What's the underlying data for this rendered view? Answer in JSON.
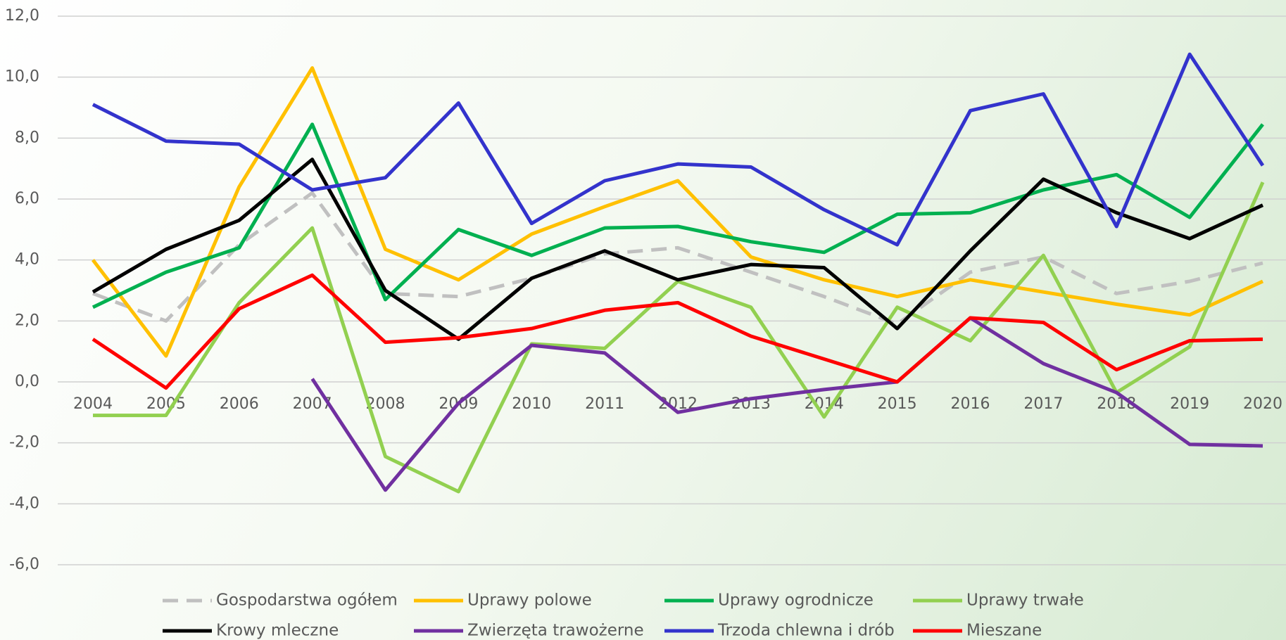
{
  "chart_data": {
    "type": "line",
    "categories": [
      "2004",
      "2005",
      "2006",
      "2007",
      "2008",
      "2009",
      "2010",
      "2011",
      "2012",
      "2013",
      "2014",
      "2015",
      "2016",
      "2017",
      "2018",
      "2019",
      "2020"
    ],
    "ylim": [
      -6,
      12
    ],
    "yticks": [
      {
        "value": -6,
        "label": "-6,0"
      },
      {
        "value": -4,
        "label": "-4,0"
      },
      {
        "value": -2,
        "label": "-2,0"
      },
      {
        "value": 0,
        "label": "0,0"
      },
      {
        "value": 2,
        "label": "2,0"
      },
      {
        "value": 4,
        "label": "4,0"
      },
      {
        "value": 6,
        "label": "6,0"
      },
      {
        "value": 8,
        "label": "8,0"
      },
      {
        "value": 10,
        "label": "10,0"
      },
      {
        "value": 12,
        "label": "12,0"
      }
    ],
    "grid": true,
    "legend": "bottom",
    "series": [
      {
        "name": "Gospodarstwa ogółem",
        "color": "#c0c0c0",
        "dash": true,
        "values": [
          2.9,
          2.0,
          4.5,
          6.2,
          2.9,
          2.8,
          3.4,
          4.2,
          4.4,
          3.6,
          2.8,
          1.9,
          3.6,
          4.1,
          2.9,
          3.3,
          3.9
        ]
      },
      {
        "name": "Uprawy polowe",
        "color": "#ffc000",
        "values": [
          4.0,
          0.85,
          6.4,
          10.3,
          4.35,
          3.35,
          4.85,
          5.75,
          6.6,
          4.1,
          3.35,
          2.8,
          3.35,
          2.95,
          2.55,
          2.2,
          3.3
        ]
      },
      {
        "name": "Uprawy ogrodnicze",
        "color": "#00b050",
        "values": [
          2.45,
          3.6,
          4.4,
          8.45,
          2.7,
          5.0,
          4.15,
          5.05,
          5.1,
          4.6,
          4.25,
          5.5,
          5.55,
          6.3,
          6.8,
          5.4,
          8.45
        ]
      },
      {
        "name": "Uprawy trwałe",
        "color": "#92d050",
        "values": [
          -1.1,
          -1.1,
          2.6,
          5.05,
          -2.45,
          -3.6,
          1.25,
          1.1,
          3.3,
          2.45,
          -1.15,
          2.45,
          1.35,
          4.15,
          -0.35,
          1.15,
          6.55
        ]
      },
      {
        "name": "Krowy mleczne",
        "color": "#000000",
        "values": [
          2.95,
          4.35,
          5.3,
          7.3,
          3.0,
          1.4,
          3.4,
          4.3,
          3.35,
          3.85,
          3.75,
          1.75,
          4.3,
          6.65,
          5.55,
          4.7,
          5.8
        ]
      },
      {
        "name": "Zwierzęta trawożerne",
        "color": "#7030a0",
        "values": [
          null,
          null,
          null,
          0.1,
          -3.55,
          -0.7,
          1.2,
          0.95,
          -1.0,
          -0.55,
          -0.25,
          0.0,
          2.1,
          0.6,
          -0.35,
          -2.05,
          -2.1
        ]
      },
      {
        "name": "Trzoda chlewna i drób",
        "color": "#3333cc",
        "values": [
          9.1,
          7.9,
          7.8,
          6.3,
          6.7,
          9.15,
          5.2,
          6.6,
          7.15,
          7.05,
          5.65,
          4.5,
          8.9,
          9.45,
          5.1,
          10.75,
          7.1
        ]
      },
      {
        "name": "Mieszane",
        "color": "#ff0000",
        "values": [
          1.4,
          -0.2,
          2.4,
          3.5,
          1.3,
          1.45,
          1.75,
          2.35,
          2.6,
          1.5,
          0.75,
          0.0,
          2.1,
          1.95,
          0.4,
          1.35,
          1.4
        ]
      }
    ]
  }
}
